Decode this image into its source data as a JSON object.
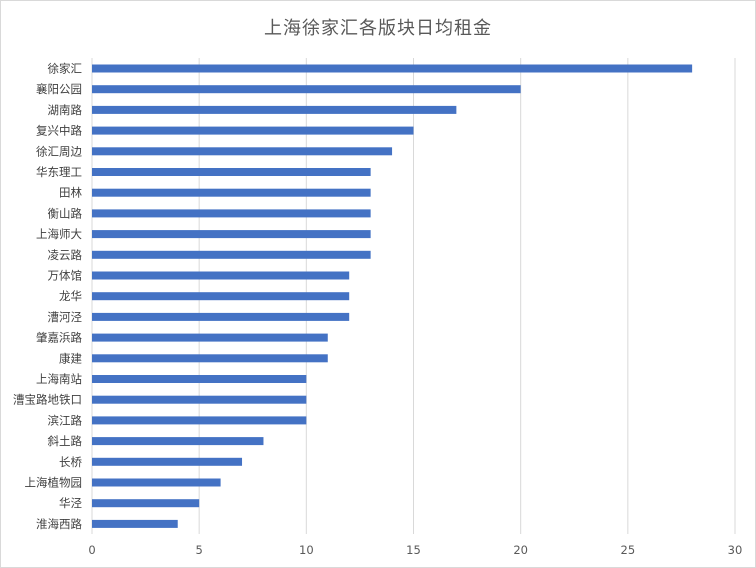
{
  "chart_data": {
    "type": "bar",
    "orientation": "horizontal",
    "title": "上海徐家汇各版块日均租金",
    "xlabel": "",
    "ylabel": "",
    "xlim": [
      0,
      30
    ],
    "xticks": [
      "0",
      "5",
      "10",
      "15",
      "20",
      "25",
      "30"
    ],
    "grid": "vertical",
    "legend": "none",
    "bar_color": "#4472C4",
    "categories": [
      "徐家汇",
      "襄阳公园",
      "湖南路",
      "复兴中路",
      "徐汇周边",
      "华东理工",
      "田林",
      "衡山路",
      "上海师大",
      "凌云路",
      "万体馆",
      "龙华",
      "漕河泾",
      "肇嘉浜路",
      "康建",
      "上海南站",
      "漕宝路地铁口",
      "滨江路",
      "斜土路",
      "长桥",
      "上海植物园",
      "华泾",
      "淮海西路"
    ],
    "values": [
      28,
      20,
      17,
      15,
      14,
      13,
      13,
      13,
      13,
      13,
      12,
      12,
      12,
      11,
      11,
      10,
      10,
      10,
      8,
      7,
      6,
      5,
      4
    ]
  }
}
